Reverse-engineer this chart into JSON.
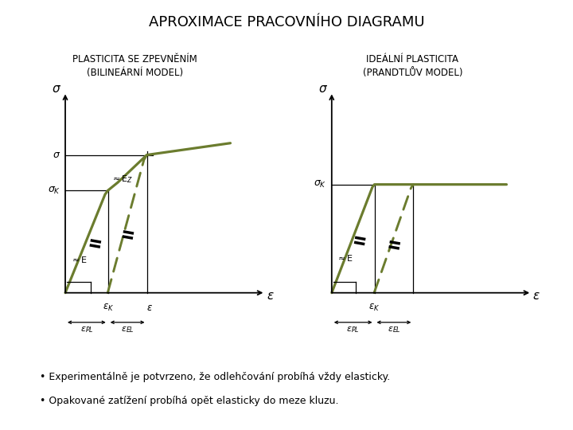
{
  "title": "APROXIMACE PRACOVNÍHO DIAGRAMU",
  "title_fontsize": 13,
  "subtitle1": "PLASTICITA SE ZPEVNĚNÍM\n(BILINEÁRNÍ MODEL)",
  "subtitle2": "IDEÁLNÍ PLASTICITA\n(PRANDTLŮV MODEL)",
  "subtitle_fontsize": 8.5,
  "line_color": "#6b7c2e",
  "bg_color": "#ffffff",
  "bullet1": "Experimentálně je potvrzeno, že odlehčování probíhá vždy elasticky.",
  "bullet2": "Opakované zatížení probíhá opět elasticky do meze kluzu.",
  "bullet_fontsize": 9.0
}
